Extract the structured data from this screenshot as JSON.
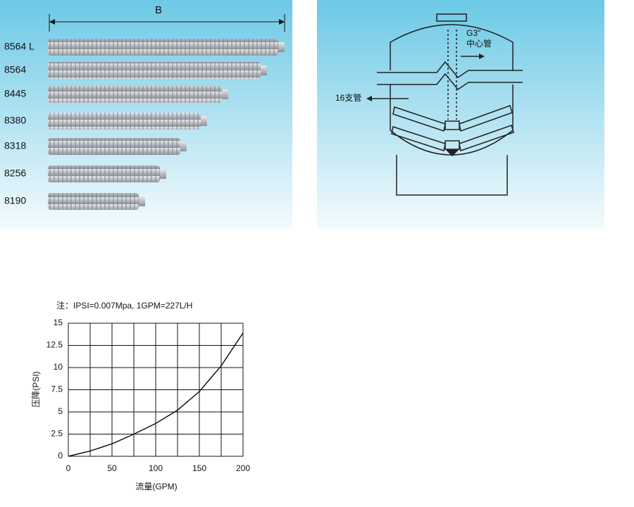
{
  "products": {
    "dimension_label": "B",
    "models": [
      "8564 L",
      "8564",
      "8445",
      "8380",
      "8318",
      "8256",
      "8190"
    ]
  },
  "diagram": {
    "center_pipe_size": "G3\"",
    "center_pipe": "中心管",
    "laterals": "16支管"
  },
  "chart_data": {
    "type": "line",
    "title": "注：IPSI=0.007Mpa, 1GPM=227L/H",
    "x_label": "流量(GPM)",
    "y_label": "压降(PSI)",
    "x": [
      0,
      25,
      50,
      75,
      100,
      125,
      150,
      175,
      200
    ],
    "series": [
      {
        "name": "压降",
        "color": "#111111",
        "values": [
          0,
          0.6,
          1.4,
          2.5,
          3.7,
          5.2,
          7.3,
          10.2,
          13.9
        ]
      }
    ],
    "xlim": [
      0,
      200
    ],
    "xticks": [
      0,
      50,
      100,
      150,
      200
    ],
    "xgrid": [
      0,
      25,
      50,
      75,
      100,
      125,
      150,
      175,
      200
    ],
    "ylim": [
      0,
      15
    ],
    "yticks": [
      0,
      2.5,
      5,
      7.5,
      10,
      12.5,
      15
    ],
    "grid": true
  }
}
